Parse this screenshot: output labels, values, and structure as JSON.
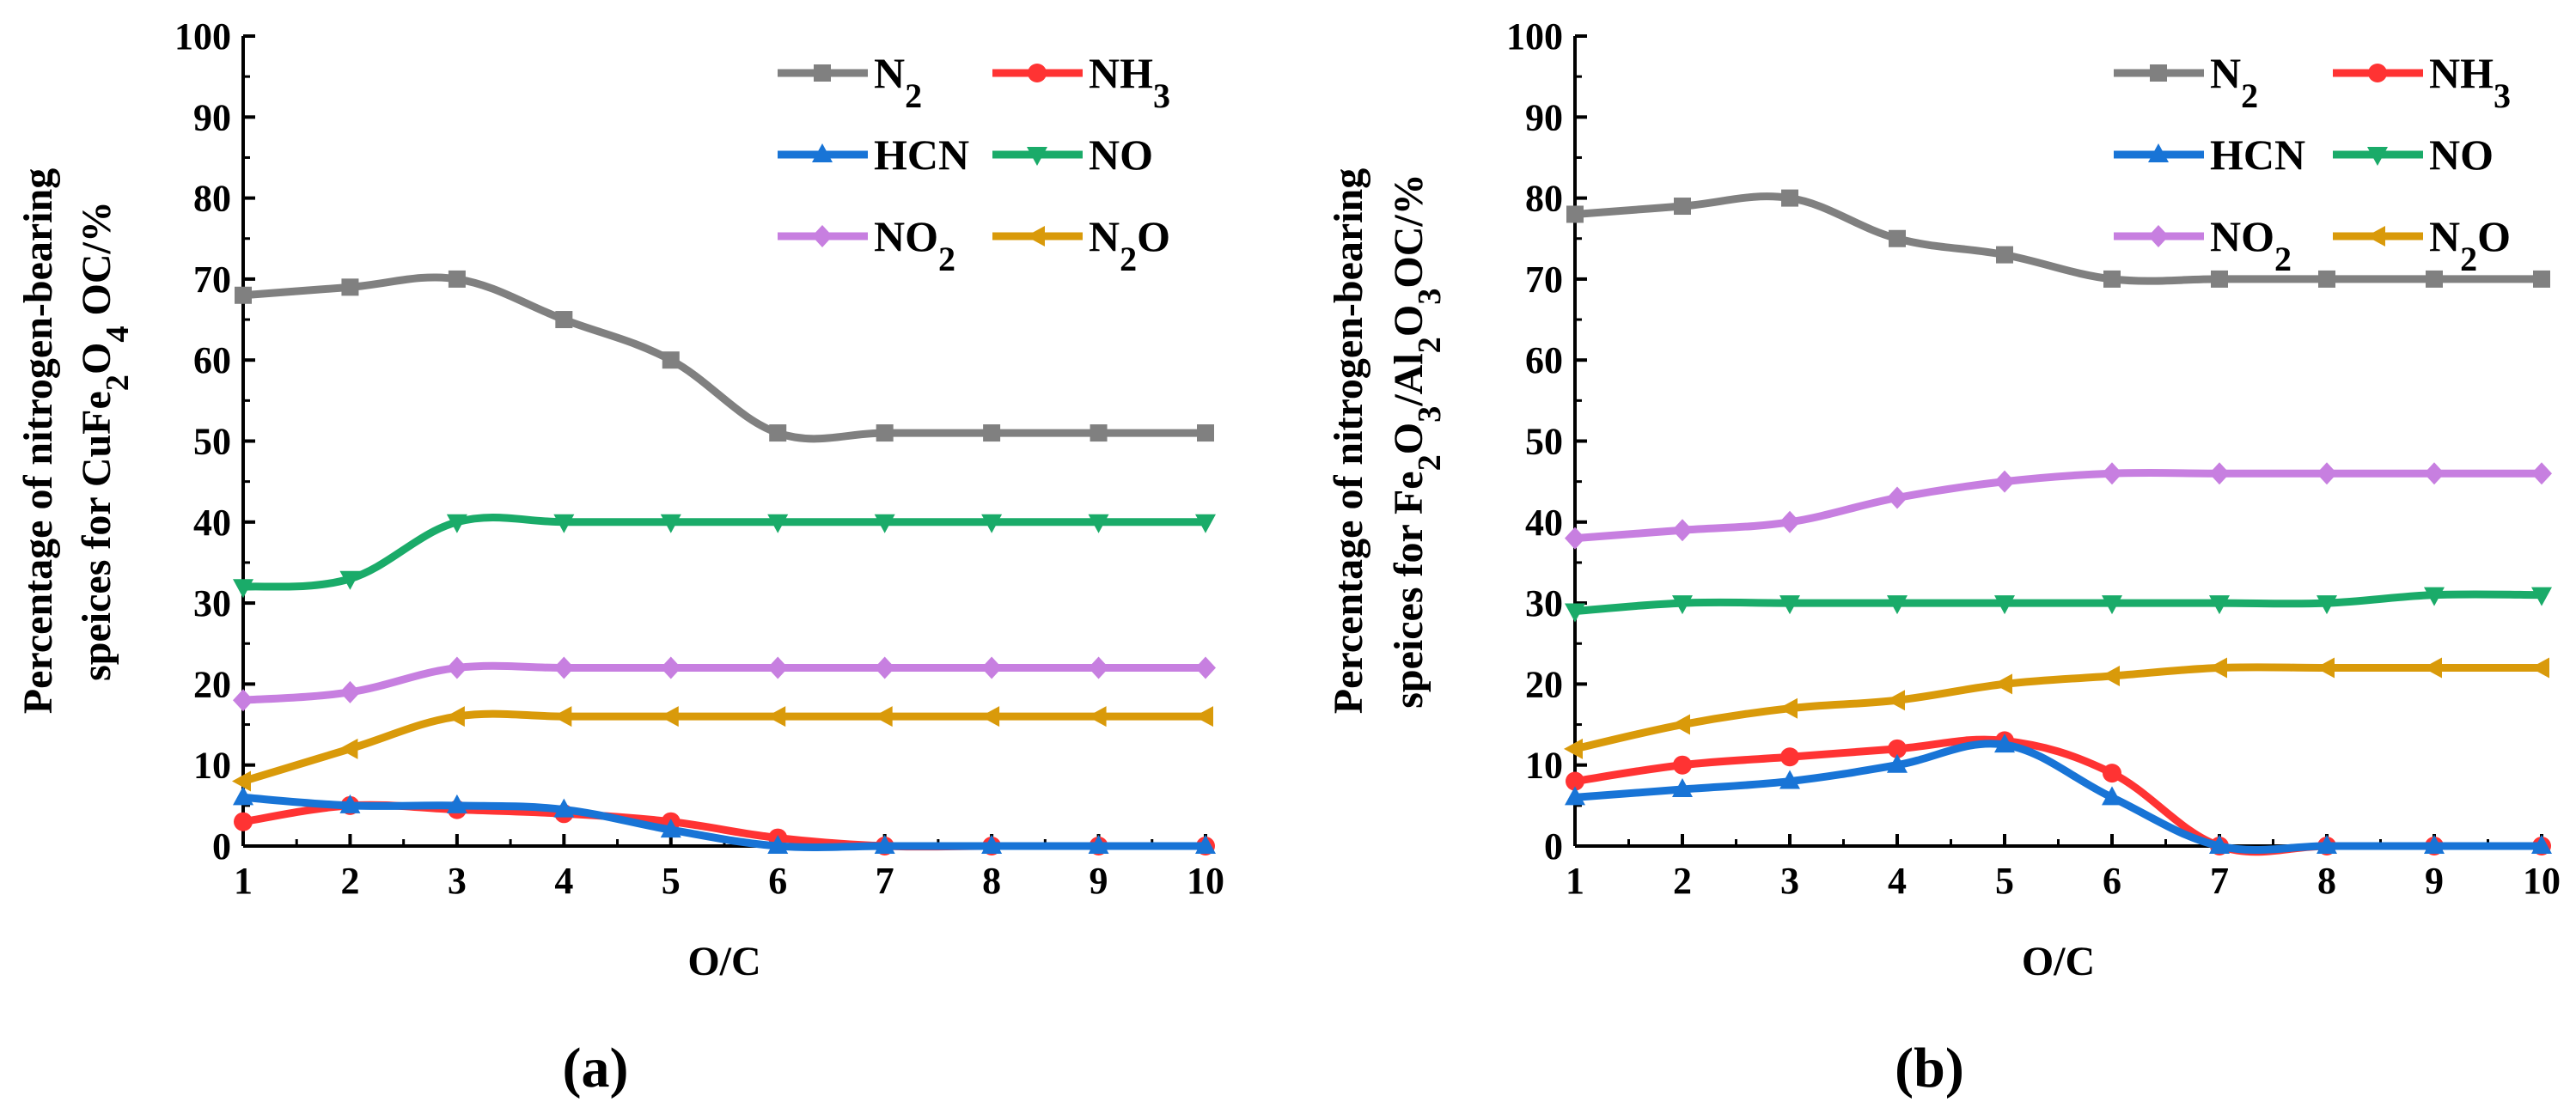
{
  "series_style": {
    "N2": {
      "color": "#808080",
      "marker": "square"
    },
    "NH3": {
      "color": "#ff3333",
      "marker": "circle"
    },
    "HCN": {
      "color": "#1874d6",
      "marker": "triangle-up"
    },
    "NO": {
      "color": "#1aab69",
      "marker": "triangle-down"
    },
    "NO2": {
      "color": "#c77fe0",
      "marker": "diamond"
    },
    "N2O": {
      "color": "#d99a0a",
      "marker": "triangle-left"
    }
  },
  "chart_data": [
    {
      "type": "line",
      "panel_label": "(a)",
      "xlabel": "O/C",
      "ylabel_line1": "Percentage of nitrogen-bearing",
      "ylabel_line2": "speices for CuFe2O4 OC/%",
      "xlim": [
        1,
        10
      ],
      "ylim": [
        0,
        100
      ],
      "xticks": [
        "1",
        "2",
        "3",
        "4",
        "5",
        "6",
        "7",
        "8",
        "9",
        "10"
      ],
      "yticks": [
        "0",
        "10",
        "20",
        "30",
        "40",
        "50",
        "60",
        "70",
        "80",
        "90",
        "100"
      ],
      "x": [
        1,
        2,
        3,
        4,
        5,
        6,
        7,
        8,
        9,
        10
      ],
      "legend_position": "top-right",
      "legend_labels": [
        "N2",
        "NH3",
        "HCN",
        "NO",
        "NO2",
        "N2O"
      ],
      "series": [
        {
          "key": "N2",
          "name": "N2",
          "values": [
            68,
            69,
            70,
            65,
            60,
            51,
            51,
            51,
            51,
            51
          ]
        },
        {
          "key": "NH3",
          "name": "NH3",
          "values": [
            3,
            5,
            4.5,
            4,
            3,
            1,
            0,
            0,
            0,
            0
          ]
        },
        {
          "key": "HCN",
          "name": "HCN",
          "values": [
            6,
            5,
            5,
            4.5,
            2,
            0,
            0,
            0,
            0,
            0
          ]
        },
        {
          "key": "NO",
          "name": "NO",
          "values": [
            32,
            33,
            40,
            40,
            40,
            40,
            40,
            40,
            40,
            40
          ]
        },
        {
          "key": "NO2",
          "name": "NO2",
          "values": [
            18,
            19,
            22,
            22,
            22,
            22,
            22,
            22,
            22,
            22
          ]
        },
        {
          "key": "N2O",
          "name": "N2O",
          "values": [
            8,
            12,
            16,
            16,
            16,
            16,
            16,
            16,
            16,
            16
          ]
        }
      ]
    },
    {
      "type": "line",
      "panel_label": "(b)",
      "xlabel": "O/C",
      "ylabel_line1": "Percentage of nitrogen-bearing",
      "ylabel_line2": "speices for Fe2O3/Al2O3OC/%",
      "xlim": [
        1,
        10
      ],
      "ylim": [
        0,
        100
      ],
      "xticks": [
        "1",
        "2",
        "3",
        "4",
        "5",
        "6",
        "7",
        "8",
        "9",
        "10"
      ],
      "yticks": [
        "0",
        "10",
        "20",
        "30",
        "40",
        "50",
        "60",
        "70",
        "80",
        "90",
        "100"
      ],
      "x": [
        1,
        2,
        3,
        4,
        5,
        6,
        7,
        8,
        9,
        10
      ],
      "legend_position": "top-right",
      "legend_labels": [
        "N2",
        "NH3",
        "HCN",
        "NO",
        "NO2",
        "N2O"
      ],
      "series": [
        {
          "key": "N2",
          "name": "N2",
          "values": [
            78,
            79,
            80,
            75,
            73,
            70,
            70,
            70,
            70,
            70
          ]
        },
        {
          "key": "NH3",
          "name": "NH3",
          "values": [
            8,
            10,
            11,
            12,
            13,
            9,
            0,
            0,
            0,
            0
          ]
        },
        {
          "key": "HCN",
          "name": "HCN",
          "values": [
            6,
            7,
            8,
            10,
            12.5,
            6,
            0,
            0,
            0,
            0
          ]
        },
        {
          "key": "NO",
          "name": "NO",
          "values": [
            29,
            30,
            30,
            30,
            30,
            30,
            30,
            30,
            31,
            31
          ]
        },
        {
          "key": "NO2",
          "name": "NO2",
          "values": [
            38,
            39,
            40,
            43,
            45,
            46,
            46,
            46,
            46,
            46
          ]
        },
        {
          "key": "N2O",
          "name": "N2O",
          "values": [
            12,
            15,
            17,
            18,
            20,
            21,
            22,
            22,
            22,
            22
          ]
        }
      ]
    }
  ]
}
